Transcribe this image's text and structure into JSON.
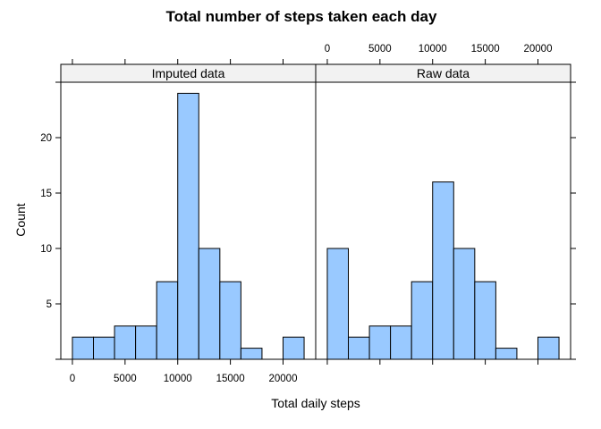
{
  "chart_data": {
    "type": "bar",
    "title": "Total number of steps taken each day",
    "xlabel": "Total daily steps",
    "ylabel": "Count",
    "bin_edges": [
      0,
      2000,
      4000,
      6000,
      8000,
      10000,
      12000,
      14000,
      16000,
      18000,
      20000,
      22000
    ],
    "xlim": [
      -1100,
      23100
    ],
    "ylim": [
      0,
      25
    ],
    "x_ticks": [
      0,
      5000,
      10000,
      15000,
      20000
    ],
    "y_ticks": [
      5,
      10,
      15,
      20
    ],
    "colors": {
      "bar_fill": "#99C9FF",
      "bar_stroke": "#000000",
      "strip_fill": "#F2F2F2"
    },
    "panels": [
      {
        "name": "Imputed data",
        "counts": [
          2,
          2,
          3,
          3,
          7,
          24,
          10,
          7,
          1,
          0,
          2
        ]
      },
      {
        "name": "Raw data",
        "counts": [
          10,
          2,
          3,
          3,
          7,
          16,
          10,
          7,
          1,
          0,
          2
        ]
      }
    ]
  }
}
